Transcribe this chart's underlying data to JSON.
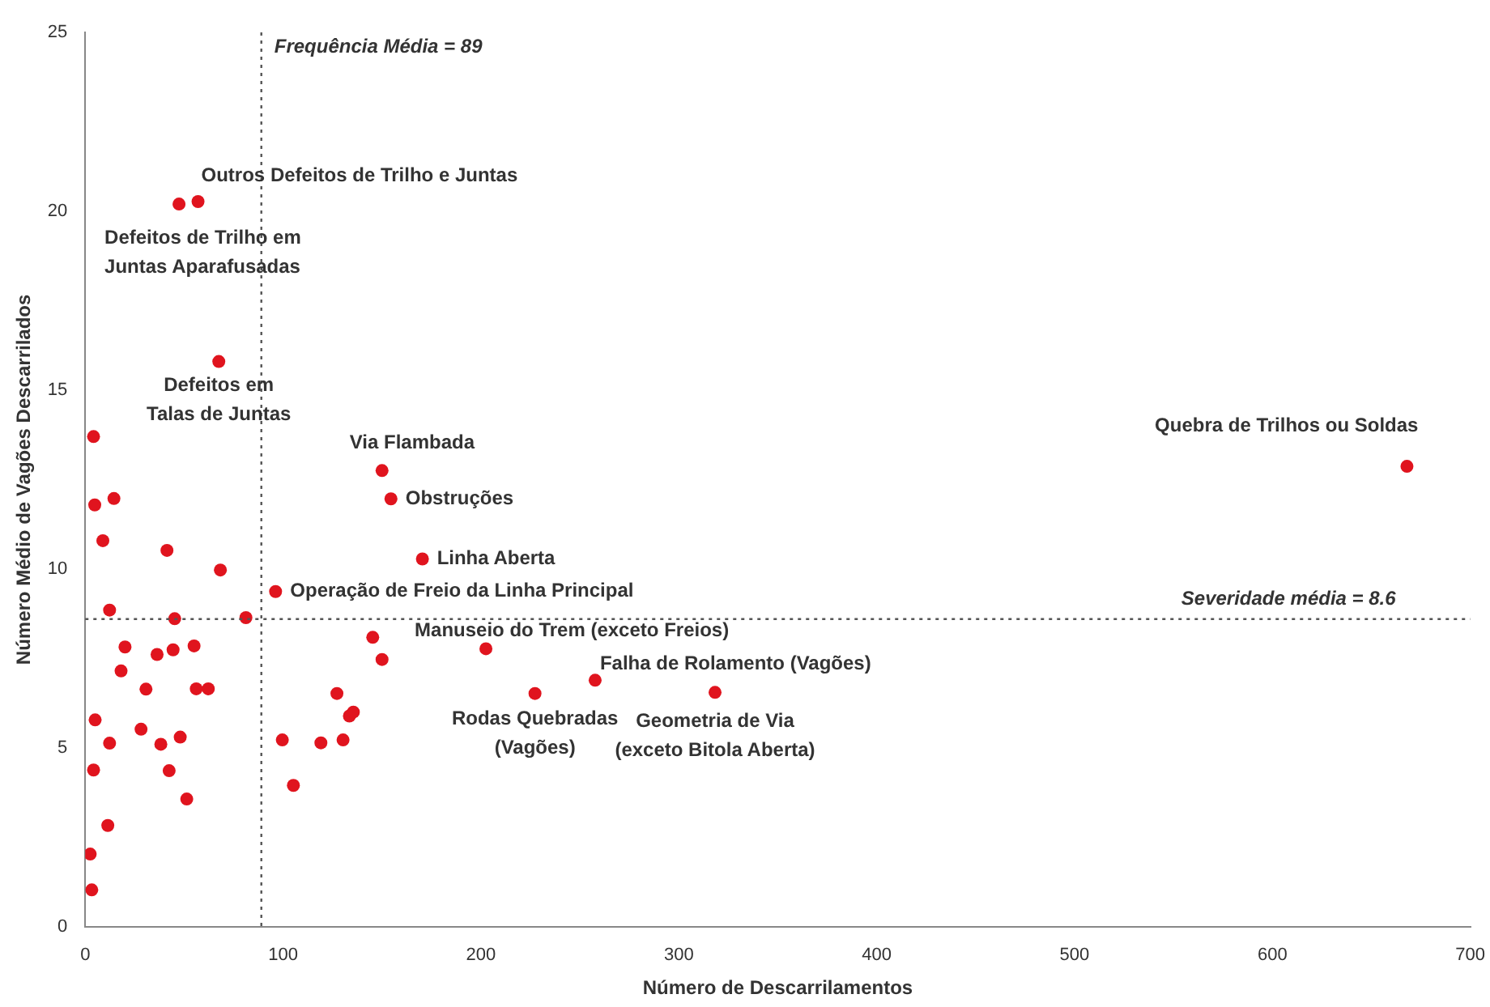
{
  "chart_data": {
    "type": "scatter",
    "xlabel": "Número de Descarrilamentos",
    "ylabel": "Número Médio de Vagões Descarrilados",
    "marker": "circle",
    "grid": false,
    "legend": false,
    "xlim": [
      0,
      700
    ],
    "xticks": [
      0,
      100,
      200,
      300,
      400,
      500,
      600,
      700
    ],
    "ylim": [
      0,
      25
    ],
    "yticks": [
      0,
      5,
      10,
      15,
      20,
      25
    ],
    "series": [
      {
        "color": "#e0141e",
        "x": [
          57,
          47.4,
          67.5,
          150,
          154.5,
          170.4,
          96.2,
          202.5,
          257.7,
          227.3,
          318.3,
          668,
          4.2,
          4.8,
          14.5,
          8.9,
          41.3,
          68.3,
          12.3,
          45.2,
          81.2,
          20.1,
          36.3,
          44.4,
          55,
          18.1,
          30.7,
          56.1,
          62.2,
          5,
          28.2,
          12.3,
          38.2,
          48,
          4.2,
          42.4,
          51.3,
          11.4,
          2.5,
          3.3,
          145.3,
          150,
          127.2,
          133.5,
          135.5,
          99.6,
          119.1,
          130.3,
          105.2
        ],
        "values": [
          20.27,
          20.2,
          15.8,
          12.75,
          11.96,
          10.28,
          9.37,
          7.77,
          6.89,
          6.52,
          6.55,
          12.87,
          13.7,
          11.79,
          11.97,
          10.79,
          10.52,
          9.97,
          8.85,
          8.61,
          8.64,
          7.82,
          7.61,
          7.74,
          7.85,
          7.15,
          6.64,
          6.65,
          6.65,
          5.78,
          5.52,
          5.13,
          5.1,
          5.3,
          4.38,
          4.36,
          3.57,
          2.83,
          2.03,
          1.03,
          8.09,
          7.47,
          6.52,
          5.89,
          6.0,
          5.22,
          5.14,
          5.22,
          3.95
        ]
      }
    ],
    "ref_lines": [
      {
        "axis": "x",
        "value": 89,
        "label": "Frequência Média = 89",
        "line_style": "dotted",
        "color": "#555555"
      },
      {
        "axis": "y",
        "value": 8.6,
        "label": "Severidade média = 8.6",
        "line_style": "dotted",
        "color": "#555555"
      }
    ],
    "annotations": [
      {
        "text": "Outros Defeitos de Trilho e Juntas",
        "x": 57,
        "y": 20.27
      },
      {
        "text": "Defeitos de Trilho em Juntas Aparafusadas",
        "x": 47.4,
        "y": 20.2
      },
      {
        "text": "Defeitos em Talas de Juntas",
        "x": 67.5,
        "y": 15.8
      },
      {
        "text": "Via Flambada",
        "x": 150,
        "y": 12.75
      },
      {
        "text": "Obstruções",
        "x": 154.5,
        "y": 11.96
      },
      {
        "text": "Linha Aberta",
        "x": 170.4,
        "y": 10.28
      },
      {
        "text": "Operação de Freio da Linha Principal",
        "x": 96.2,
        "y": 9.37
      },
      {
        "text": "Manuseio do Trem (exceto Freios)",
        "x": 202.5,
        "y": 7.77
      },
      {
        "text": "Falha de Rolamento (Vagões)",
        "x": 257.7,
        "y": 6.89
      },
      {
        "text": "Rodas Quebradas (Vagões)",
        "x": 227.3,
        "y": 6.52
      },
      {
        "text": "Geometria de Via (exceto Bitola Aberta)",
        "x": 318.3,
        "y": 6.55
      },
      {
        "text": "Quebra de Trilhos ou Soldas",
        "x": 668,
        "y": 12.87
      }
    ]
  }
}
